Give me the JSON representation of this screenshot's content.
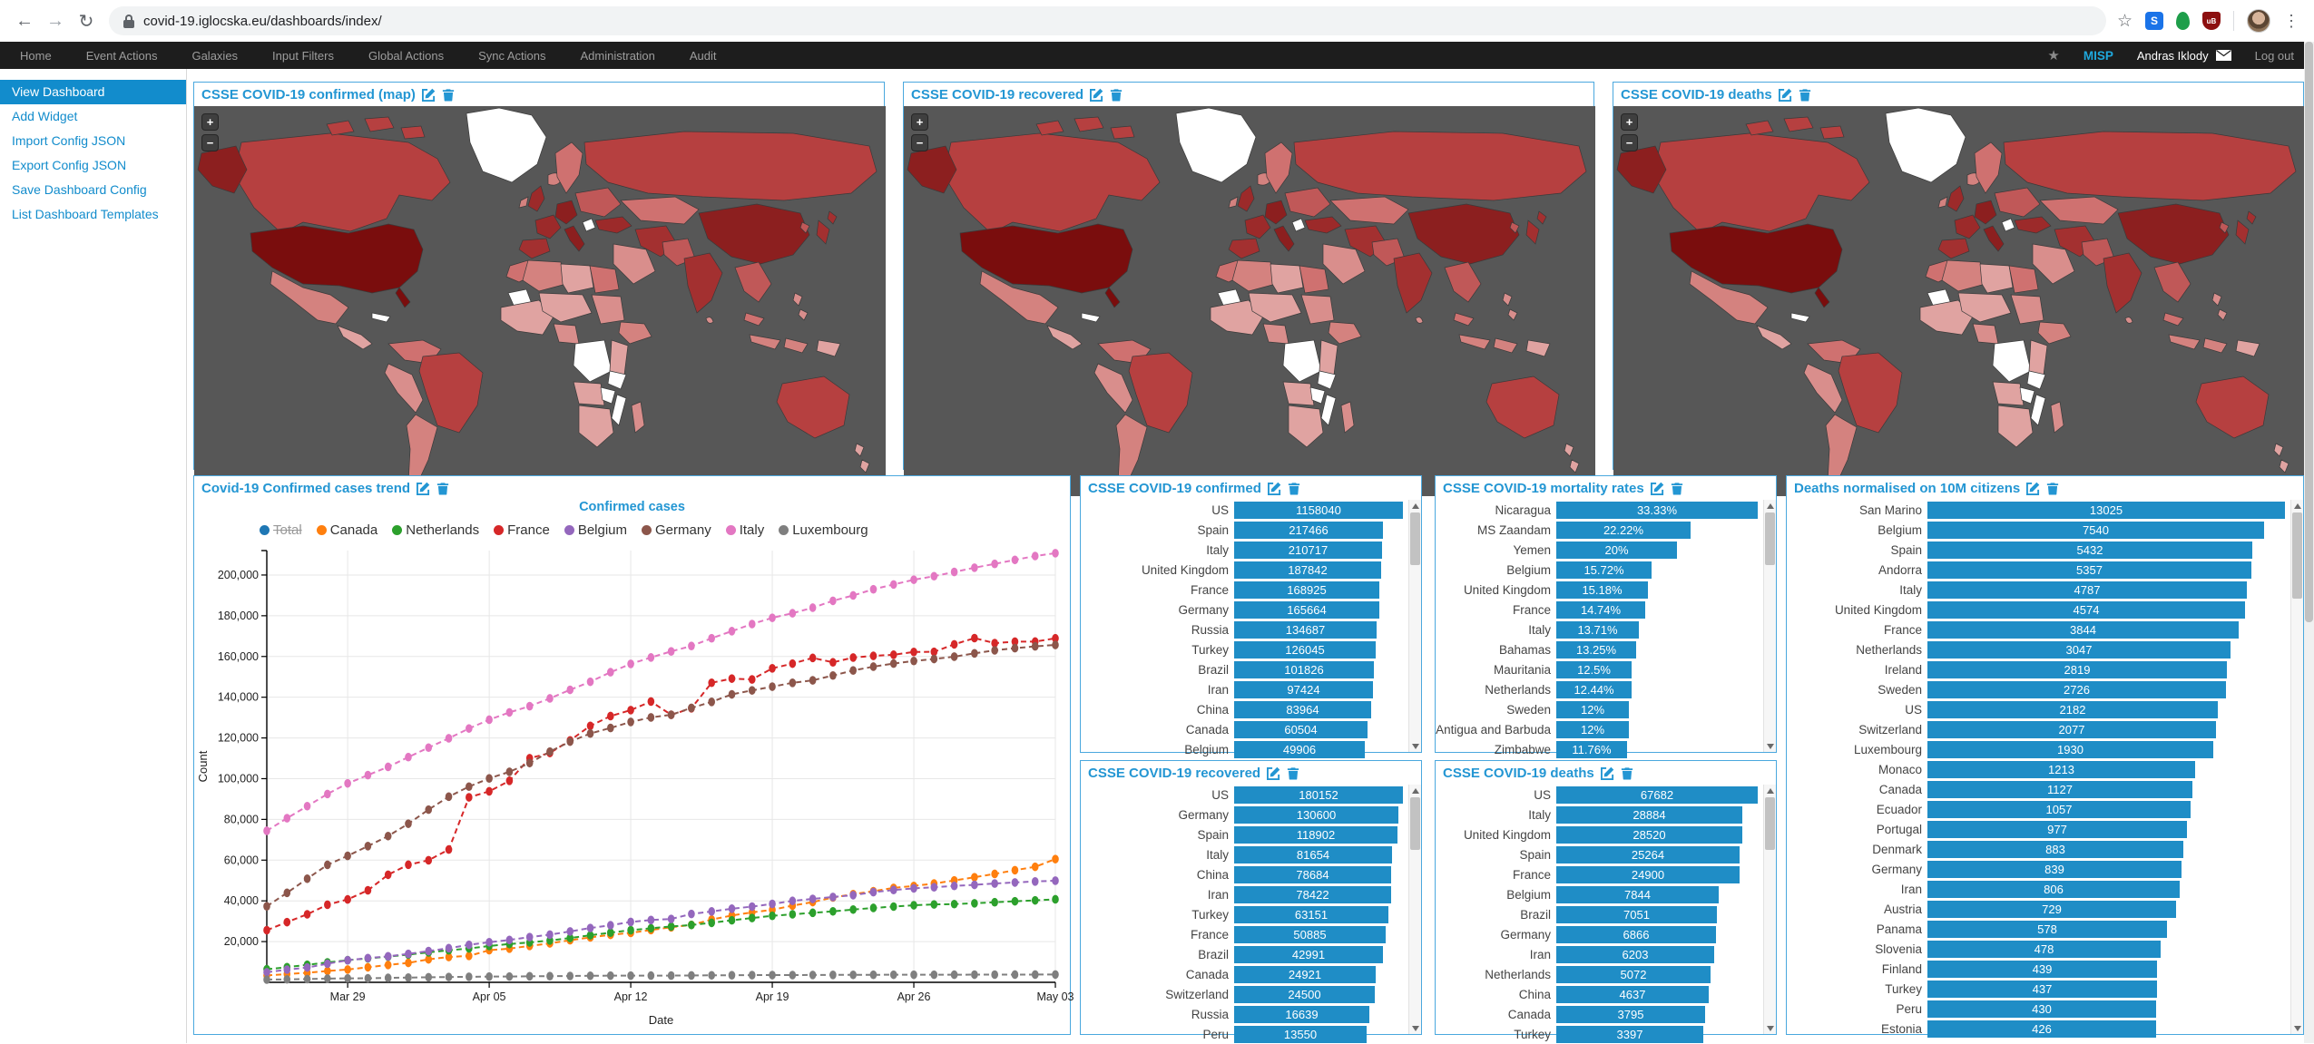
{
  "browser": {
    "url": "covid-19.iglocska.eu/dashboards/index/"
  },
  "navbar": {
    "items": [
      "Home",
      "Event Actions",
      "Galaxies",
      "Input Filters",
      "Global Actions",
      "Sync Actions",
      "Administration",
      "Audit"
    ],
    "brand": "MISP",
    "user": "Andras Iklody",
    "logout": "Log out"
  },
  "sidebar": {
    "items": [
      {
        "label": "View Dashboard",
        "active": true
      },
      {
        "label": "Add Widget",
        "active": false
      },
      {
        "label": "Import Config JSON",
        "active": false
      },
      {
        "label": "Export Config JSON",
        "active": false
      },
      {
        "label": "Save Dashboard Config",
        "active": false
      },
      {
        "label": "List Dashboard Templates",
        "active": false
      }
    ]
  },
  "map_widgets": [
    {
      "title": "CSSE COVID-19 confirmed (map)"
    },
    {
      "title": "CSSE COVID-19 recovered"
    },
    {
      "title": "CSSE COVID-19 deaths"
    }
  ],
  "map_controls": {
    "zoom_in": "+",
    "zoom_out": "−"
  },
  "map_palette": {
    "water": "#575757",
    "none": "#ffffff",
    "stroke": "#3a3a3a",
    "l1": "#ecc4c2",
    "l2": "#e0a3a1",
    "l3": "#d98e8c",
    "l4": "#d4827f",
    "l5": "#cf7170",
    "l6": "#c05858",
    "l7": "#b64040",
    "l8": "#a33030",
    "l9": "#9c2a2a",
    "l10": "#8c1f1f",
    "l11": "#7a0d0d"
  },
  "trend_widget_title": "Covid-19 Confirmed cases trend",
  "bar_widgets": [
    {
      "title": "CSSE COVID-19 confirmed",
      "scale": "log",
      "unit": "",
      "rows": [
        {
          "label": "US",
          "value": 1158040,
          "display": "1158040"
        },
        {
          "label": "Spain",
          "value": 217466,
          "display": "217466"
        },
        {
          "label": "Italy",
          "value": 210717,
          "display": "210717"
        },
        {
          "label": "United Kingdom",
          "value": 187842,
          "display": "187842"
        },
        {
          "label": "France",
          "value": 168925,
          "display": "168925"
        },
        {
          "label": "Germany",
          "value": 165664,
          "display": "165664"
        },
        {
          "label": "Russia",
          "value": 134687,
          "display": "134687"
        },
        {
          "label": "Turkey",
          "value": 126045,
          "display": "126045"
        },
        {
          "label": "Brazil",
          "value": 101826,
          "display": "101826"
        },
        {
          "label": "Iran",
          "value": 97424,
          "display": "97424"
        },
        {
          "label": "China",
          "value": 83964,
          "display": "83964"
        },
        {
          "label": "Canada",
          "value": 60504,
          "display": "60504"
        },
        {
          "label": "Belgium",
          "value": 49906,
          "display": "49906"
        }
      ]
    },
    {
      "title": "CSSE COVID-19 mortality rates",
      "scale": "linear",
      "unit": "%",
      "rows": [
        {
          "label": "Nicaragua",
          "value": 33.33,
          "display": "33.33%"
        },
        {
          "label": "MS Zaandam",
          "value": 22.22,
          "display": "22.22%"
        },
        {
          "label": "Yemen",
          "value": 20,
          "display": "20%"
        },
        {
          "label": "Belgium",
          "value": 15.72,
          "display": "15.72%"
        },
        {
          "label": "United Kingdom",
          "value": 15.18,
          "display": "15.18%"
        },
        {
          "label": "France",
          "value": 14.74,
          "display": "14.74%"
        },
        {
          "label": "Italy",
          "value": 13.71,
          "display": "13.71%"
        },
        {
          "label": "Bahamas",
          "value": 13.25,
          "display": "13.25%"
        },
        {
          "label": "Mauritania",
          "value": 12.5,
          "display": "12.5%"
        },
        {
          "label": "Netherlands",
          "value": 12.44,
          "display": "12.44%"
        },
        {
          "label": "Sweden",
          "value": 12,
          "display": "12%"
        },
        {
          "label": "Antigua and Barbuda",
          "value": 12,
          "display": "12%"
        },
        {
          "label": "Zimbabwe",
          "value": 11.76,
          "display": "11.76%"
        }
      ]
    },
    {
      "title": "Deaths normalised on 10M citizens",
      "scale": "log",
      "unit": "",
      "rows": [
        {
          "label": "San Marino",
          "value": 13025,
          "display": "13025"
        },
        {
          "label": "Belgium",
          "value": 7540,
          "display": "7540"
        },
        {
          "label": "Spain",
          "value": 5432,
          "display": "5432"
        },
        {
          "label": "Andorra",
          "value": 5357,
          "display": "5357"
        },
        {
          "label": "Italy",
          "value": 4787,
          "display": "4787"
        },
        {
          "label": "United Kingdom",
          "value": 4574,
          "display": "4574"
        },
        {
          "label": "France",
          "value": 3844,
          "display": "3844"
        },
        {
          "label": "Netherlands",
          "value": 3047,
          "display": "3047"
        },
        {
          "label": "Ireland",
          "value": 2819,
          "display": "2819"
        },
        {
          "label": "Sweden",
          "value": 2726,
          "display": "2726"
        },
        {
          "label": "US",
          "value": 2182,
          "display": "2182"
        },
        {
          "label": "Switzerland",
          "value": 2077,
          "display": "2077"
        },
        {
          "label": "Luxembourg",
          "value": 1930,
          "display": "1930"
        },
        {
          "label": "Monaco",
          "value": 1213,
          "display": "1213"
        },
        {
          "label": "Canada",
          "value": 1127,
          "display": "1127"
        },
        {
          "label": "Ecuador",
          "value": 1057,
          "display": "1057"
        },
        {
          "label": "Portugal",
          "value": 977,
          "display": "977"
        },
        {
          "label": "Denmark",
          "value": 883,
          "display": "883"
        },
        {
          "label": "Germany",
          "value": 839,
          "display": "839"
        },
        {
          "label": "Iran",
          "value": 806,
          "display": "806"
        },
        {
          "label": "Austria",
          "value": 729,
          "display": "729"
        },
        {
          "label": "Panama",
          "value": 578,
          "display": "578"
        },
        {
          "label": "Slovenia",
          "value": 478,
          "display": "478"
        },
        {
          "label": "Finland",
          "value": 439,
          "display": "439"
        },
        {
          "label": "Turkey",
          "value": 437,
          "display": "437"
        },
        {
          "label": "Peru",
          "value": 430,
          "display": "430"
        },
        {
          "label": "Estonia",
          "value": 426,
          "display": "426"
        }
      ]
    },
    {
      "title": "CSSE COVID-19 recovered",
      "scale": "log",
      "unit": "",
      "rows": [
        {
          "label": "US",
          "value": 180152,
          "display": "180152"
        },
        {
          "label": "Germany",
          "value": 130600,
          "display": "130600"
        },
        {
          "label": "Spain",
          "value": 118902,
          "display": "118902"
        },
        {
          "label": "Italy",
          "value": 81654,
          "display": "81654"
        },
        {
          "label": "China",
          "value": 78684,
          "display": "78684"
        },
        {
          "label": "Iran",
          "value": 78422,
          "display": "78422"
        },
        {
          "label": "Turkey",
          "value": 63151,
          "display": "63151"
        },
        {
          "label": "France",
          "value": 50885,
          "display": "50885"
        },
        {
          "label": "Brazil",
          "value": 42991,
          "display": "42991"
        },
        {
          "label": "Canada",
          "value": 24921,
          "display": "24921"
        },
        {
          "label": "Switzerland",
          "value": 24500,
          "display": "24500"
        },
        {
          "label": "Russia",
          "value": 16639,
          "display": "16639"
        },
        {
          "label": "Peru",
          "value": 13550,
          "display": "13550"
        }
      ]
    },
    {
      "title": "CSSE COVID-19 deaths",
      "scale": "log",
      "unit": "",
      "rows": [
        {
          "label": "US",
          "value": 67682,
          "display": "67682"
        },
        {
          "label": "Italy",
          "value": 28884,
          "display": "28884"
        },
        {
          "label": "United Kingdom",
          "value": 28520,
          "display": "28520"
        },
        {
          "label": "Spain",
          "value": 25264,
          "display": "25264"
        },
        {
          "label": "France",
          "value": 24900,
          "display": "24900"
        },
        {
          "label": "Belgium",
          "value": 7844,
          "display": "7844"
        },
        {
          "label": "Brazil",
          "value": 7051,
          "display": "7051"
        },
        {
          "label": "Germany",
          "value": 6866,
          "display": "6866"
        },
        {
          "label": "Iran",
          "value": 6203,
          "display": "6203"
        },
        {
          "label": "Netherlands",
          "value": 5072,
          "display": "5072"
        },
        {
          "label": "China",
          "value": 4637,
          "display": "4637"
        },
        {
          "label": "Canada",
          "value": 3795,
          "display": "3795"
        },
        {
          "label": "Turkey",
          "value": 3397,
          "display": "3397"
        }
      ]
    }
  ],
  "chart_data": {
    "type": "line",
    "title": "Confirmed cases",
    "xlabel": "Date",
    "ylabel": "Count",
    "ylim": [
      0,
      212000
    ],
    "y_ticks": [
      20000,
      40000,
      60000,
      80000,
      100000,
      120000,
      140000,
      160000,
      180000,
      200000
    ],
    "x": [
      "Mar 25",
      "Mar 26",
      "Mar 27",
      "Mar 28",
      "Mar 29",
      "Mar 30",
      "Mar 31",
      "Apr 01",
      "Apr 02",
      "Apr 03",
      "Apr 04",
      "Apr 05",
      "Apr 06",
      "Apr 07",
      "Apr 08",
      "Apr 09",
      "Apr 10",
      "Apr 11",
      "Apr 12",
      "Apr 13",
      "Apr 14",
      "Apr 15",
      "Apr 16",
      "Apr 17",
      "Apr 18",
      "Apr 19",
      "Apr 20",
      "Apr 21",
      "Apr 22",
      "Apr 23",
      "Apr 24",
      "Apr 25",
      "Apr 26",
      "Apr 27",
      "Apr 28",
      "Apr 29",
      "Apr 30",
      "May 01",
      "May 02",
      "May 03"
    ],
    "x_ticks": [
      "Mar 29",
      "Apr 05",
      "Apr 12",
      "Apr 19",
      "Apr 26",
      "May 03"
    ],
    "grid": true,
    "legend_position": "top",
    "series": [
      {
        "name": "Total",
        "color": "#1f77b4",
        "hidden": true,
        "values": []
      },
      {
        "name": "Canada",
        "color": "#ff7f0e",
        "hidden": false,
        "values": [
          3409,
          4043,
          4682,
          5576,
          6280,
          7398,
          8527,
          9560,
          11284,
          12437,
          12978,
          15756,
          16563,
          17872,
          19141,
          20654,
          22059,
          23316,
          24299,
          25680,
          27035,
          28205,
          30809,
          32813,
          34355,
          35632,
          37658,
          39402,
          41650,
          43286,
          44745,
          46371,
          47327,
          48500,
          50026,
          51597,
          53236,
          55061,
          56714,
          60504
        ]
      },
      {
        "name": "Netherlands",
        "color": "#2ca02c",
        "hidden": false,
        "values": [
          6412,
          7431,
          8603,
          9762,
          10866,
          11750,
          12595,
          13614,
          14697,
          15723,
          16627,
          17851,
          18803,
          19580,
          20549,
          21762,
          23097,
          24413,
          25587,
          26551,
          27419,
          28153,
          29214,
          30449,
          31589,
          32655,
          33405,
          34134,
          34842,
          35729,
          36535,
          37190,
          37845,
          38245,
          38416,
          38802,
          39316,
          39791,
          40236,
          40770
        ]
      },
      {
        "name": "France",
        "color": "#d62728",
        "hidden": false,
        "values": [
          25600,
          29551,
          33402,
          38105,
          40708,
          45170,
          52827,
          57749,
          59929,
          65202,
          90848,
          93780,
          98963,
          110065,
          112606,
          118781,
          125931,
          130727,
          133670,
          137875,
          131361,
          134582,
          147091,
          149130,
          148721,
          154188,
          156480,
          159297,
          157125,
          159467,
          160292,
          160847,
          162220,
          162287,
          165963,
          169023,
          166543,
          167272,
          167305,
          168925
        ]
      },
      {
        "name": "Belgium",
        "color": "#9467bd",
        "hidden": false,
        "values": [
          4937,
          6235,
          7284,
          9134,
          10836,
          11899,
          12775,
          13964,
          15348,
          16770,
          18431,
          19691,
          20814,
          22194,
          23403,
          24983,
          26667,
          28018,
          29647,
          30589,
          31119,
          33573,
          34809,
          36138,
          37183,
          38496,
          39983,
          40956,
          41889,
          42797,
          44293,
          45325,
          46134,
          46687,
          47334,
          47859,
          48519,
          49032,
          49517,
          49906
        ]
      },
      {
        "name": "Germany",
        "color": "#8c564b",
        "hidden": false,
        "values": [
          37323,
          43938,
          50871,
          57695,
          62095,
          66885,
          71808,
          77872,
          84794,
          91159,
          96092,
          100123,
          103374,
          107663,
          113296,
          118181,
          122171,
          124908,
          127854,
          130072,
          131359,
          134753,
          137698,
          141397,
          143342,
          145184,
          147065,
          148291,
          150648,
          153129,
          154999,
          156513,
          157770,
          158758,
          159912,
          161539,
          163009,
          164077,
          164967,
          165664
        ]
      },
      {
        "name": "Italy",
        "color": "#e377c2",
        "hidden": false,
        "values": [
          74386,
          80589,
          86498,
          92472,
          97689,
          101739,
          105792,
          110574,
          115242,
          119827,
          124632,
          128948,
          132547,
          135586,
          139422,
          143626,
          147577,
          152271,
          156363,
          159516,
          162488,
          165155,
          168941,
          172434,
          175925,
          178972,
          181228,
          183957,
          187327,
          189973,
          192994,
          195351,
          197675,
          199414,
          201505,
          203591,
          205463,
          207428,
          209328,
          210717
        ]
      },
      {
        "name": "Luxembourg",
        "color": "#7f7f7f",
        "hidden": false,
        "values": [
          1333,
          1453,
          1605,
          1831,
          1950,
          1988,
          2178,
          2319,
          2487,
          2612,
          2729,
          2804,
          2843,
          2970,
          3034,
          3115,
          3223,
          3270,
          3281,
          3292,
          3307,
          3373,
          3444,
          3480,
          3537,
          3550,
          3558,
          3618,
          3654,
          3665,
          3695,
          3711,
          3723,
          3729,
          3741,
          3769,
          3784,
          3802,
          3812,
          3824
        ]
      }
    ]
  },
  "colors": {
    "accent": "#2396d3",
    "bar": "#1f8dc6",
    "widget_border": "#4aa8de",
    "link": "#128ccc",
    "navbar_bg": "#1d1d1d",
    "map_background": "#575757"
  }
}
